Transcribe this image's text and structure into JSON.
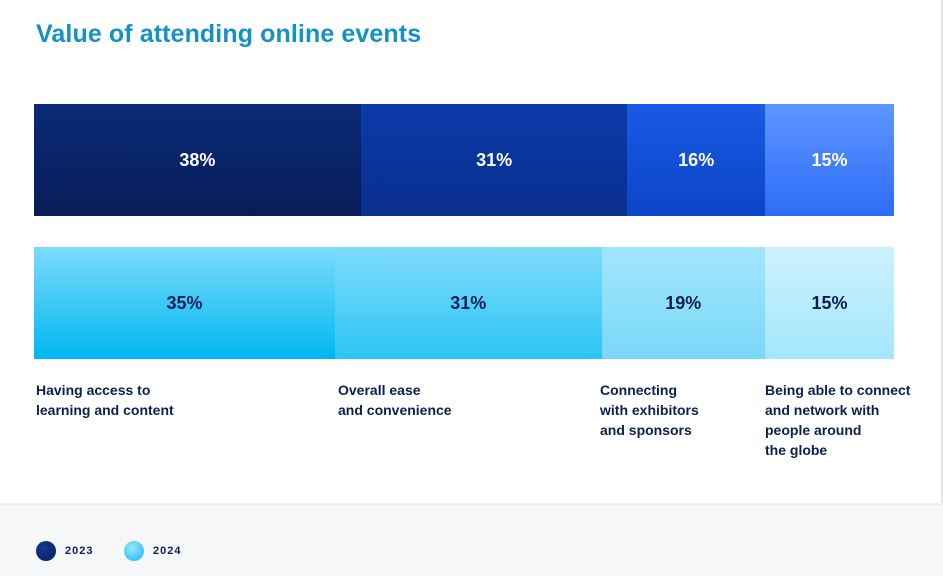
{
  "title": "Value of attending online events",
  "chart_data": {
    "type": "bar",
    "stacked": true,
    "orientation": "horizontal",
    "title": "Value of attending online events",
    "categories": [
      "Having access to learning and content",
      "Overall ease and convenience",
      "Connecting with exhibitors and sponsors",
      "Being able to connect and network with people around the globe"
    ],
    "series": [
      {
        "name": "2023",
        "values": [
          38,
          31,
          16,
          15
        ],
        "labels": [
          "38%",
          "31%",
          "16%",
          "15%"
        ],
        "color": "#0a2a78"
      },
      {
        "name": "2024",
        "values": [
          35,
          31,
          19,
          15
        ],
        "labels": [
          "35%",
          "31%",
          "19%",
          "15%"
        ],
        "color": "#29c4f6"
      }
    ]
  },
  "category_labels": [
    "Having access to\nlearning and content",
    "Overall ease\nand convenience",
    "Connecting\nwith exhibitors\nand sponsors",
    "Being able to connect\nand network with\npeople around\nthe globe"
  ],
  "legend": [
    {
      "label": "2023",
      "color": "#0a2a78"
    },
    {
      "label": "2024",
      "color": "#29c4f6"
    }
  ]
}
